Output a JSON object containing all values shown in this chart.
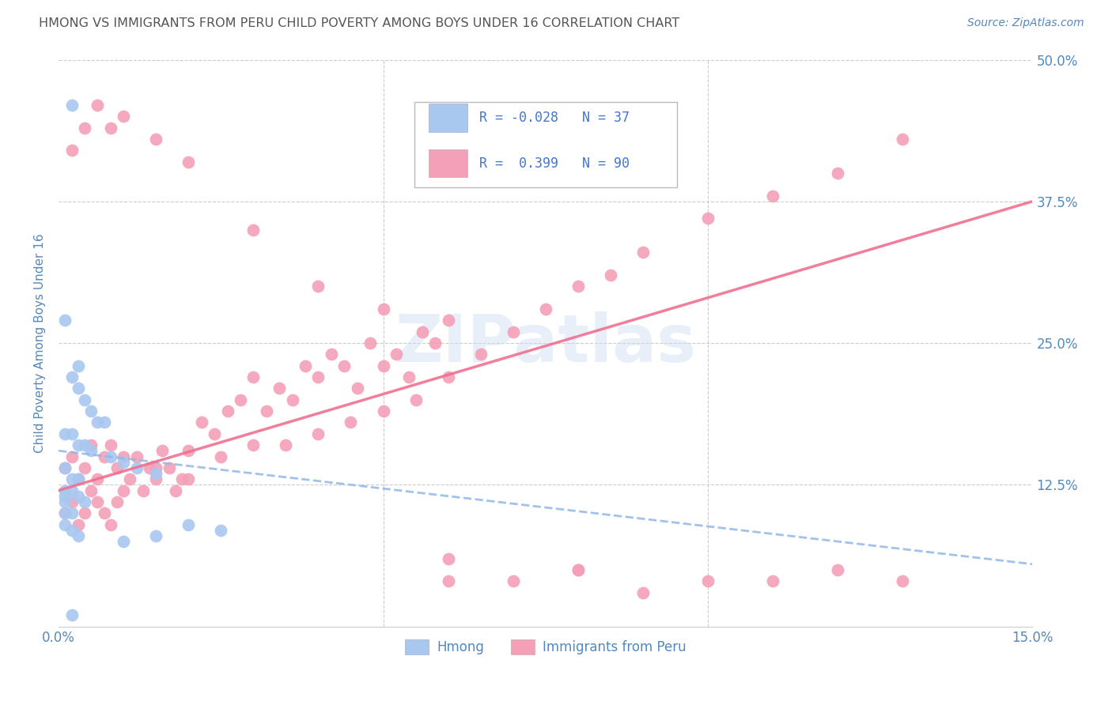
{
  "title": "HMONG VS IMMIGRANTS FROM PERU CHILD POVERTY AMONG BOYS UNDER 16 CORRELATION CHART",
  "source": "Source: ZipAtlas.com",
  "ylabel": "Child Poverty Among Boys Under 16",
  "xmin": 0.0,
  "xmax": 0.15,
  "ymin": 0.0,
  "ymax": 0.5,
  "yticks": [
    0.0,
    0.125,
    0.25,
    0.375,
    0.5
  ],
  "ytick_labels_right": [
    "",
    "12.5%",
    "25.0%",
    "37.5%",
    "50.0%"
  ],
  "xticks": [
    0.0,
    0.05,
    0.1,
    0.15
  ],
  "xtick_labels": [
    "0.0%",
    "",
    "",
    "15.0%"
  ],
  "watermark": "ZIPatlas",
  "hmong_color": "#a8c8f0",
  "peru_color": "#f4a0b8",
  "hmong_line_color": "#90b8e8",
  "peru_line_color": "#f07090",
  "title_color": "#555555",
  "source_color": "#5588bb",
  "axis_label_color": "#5588bb",
  "tick_color": "#5588bb",
  "legend_r_color": "#4477cc",
  "hmong_line_y0": 0.155,
  "hmong_line_y1": 0.055,
  "peru_line_y0": 0.12,
  "peru_line_y1": 0.375,
  "hmong_x": [
    0.002,
    0.001,
    0.003,
    0.002,
    0.003,
    0.004,
    0.005,
    0.006,
    0.007,
    0.001,
    0.002,
    0.003,
    0.004,
    0.005,
    0.008,
    0.01,
    0.012,
    0.015,
    0.001,
    0.002,
    0.003,
    0.001,
    0.002,
    0.001,
    0.001,
    0.003,
    0.004,
    0.002,
    0.001,
    0.001,
    0.002,
    0.003,
    0.02,
    0.025,
    0.015,
    0.01,
    0.002
  ],
  "hmong_y": [
    0.46,
    0.27,
    0.23,
    0.22,
    0.21,
    0.2,
    0.19,
    0.18,
    0.18,
    0.17,
    0.17,
    0.16,
    0.16,
    0.155,
    0.15,
    0.145,
    0.14,
    0.135,
    0.14,
    0.13,
    0.13,
    0.12,
    0.12,
    0.115,
    0.11,
    0.115,
    0.11,
    0.1,
    0.1,
    0.09,
    0.085,
    0.08,
    0.09,
    0.085,
    0.08,
    0.075,
    0.01
  ],
  "peru_x": [
    0.001,
    0.002,
    0.003,
    0.004,
    0.005,
    0.006,
    0.007,
    0.008,
    0.009,
    0.01,
    0.011,
    0.012,
    0.013,
    0.014,
    0.015,
    0.016,
    0.017,
    0.018,
    0.019,
    0.02,
    0.022,
    0.024,
    0.026,
    0.028,
    0.03,
    0.032,
    0.034,
    0.036,
    0.038,
    0.04,
    0.042,
    0.044,
    0.046,
    0.048,
    0.05,
    0.052,
    0.054,
    0.056,
    0.058,
    0.06,
    0.001,
    0.002,
    0.003,
    0.004,
    0.005,
    0.006,
    0.007,
    0.008,
    0.009,
    0.01,
    0.015,
    0.02,
    0.025,
    0.03,
    0.035,
    0.04,
    0.045,
    0.05,
    0.055,
    0.06,
    0.065,
    0.07,
    0.075,
    0.08,
    0.085,
    0.09,
    0.1,
    0.11,
    0.12,
    0.13,
    0.002,
    0.004,
    0.006,
    0.008,
    0.01,
    0.015,
    0.02,
    0.03,
    0.04,
    0.05,
    0.06,
    0.07,
    0.08,
    0.09,
    0.1,
    0.11,
    0.12,
    0.13,
    0.06,
    0.08
  ],
  "peru_y": [
    0.14,
    0.15,
    0.13,
    0.14,
    0.16,
    0.13,
    0.15,
    0.16,
    0.14,
    0.15,
    0.13,
    0.15,
    0.12,
    0.14,
    0.13,
    0.155,
    0.14,
    0.12,
    0.13,
    0.155,
    0.18,
    0.17,
    0.19,
    0.2,
    0.22,
    0.19,
    0.21,
    0.2,
    0.23,
    0.22,
    0.24,
    0.23,
    0.21,
    0.25,
    0.23,
    0.24,
    0.22,
    0.26,
    0.25,
    0.27,
    0.1,
    0.11,
    0.09,
    0.1,
    0.12,
    0.11,
    0.1,
    0.09,
    0.11,
    0.12,
    0.14,
    0.13,
    0.15,
    0.16,
    0.16,
    0.17,
    0.18,
    0.19,
    0.2,
    0.22,
    0.24,
    0.26,
    0.28,
    0.3,
    0.31,
    0.33,
    0.36,
    0.38,
    0.4,
    0.43,
    0.42,
    0.44,
    0.46,
    0.44,
    0.45,
    0.43,
    0.41,
    0.35,
    0.3,
    0.28,
    0.04,
    0.04,
    0.05,
    0.03,
    0.04,
    0.04,
    0.05,
    0.04,
    0.06,
    0.05
  ]
}
